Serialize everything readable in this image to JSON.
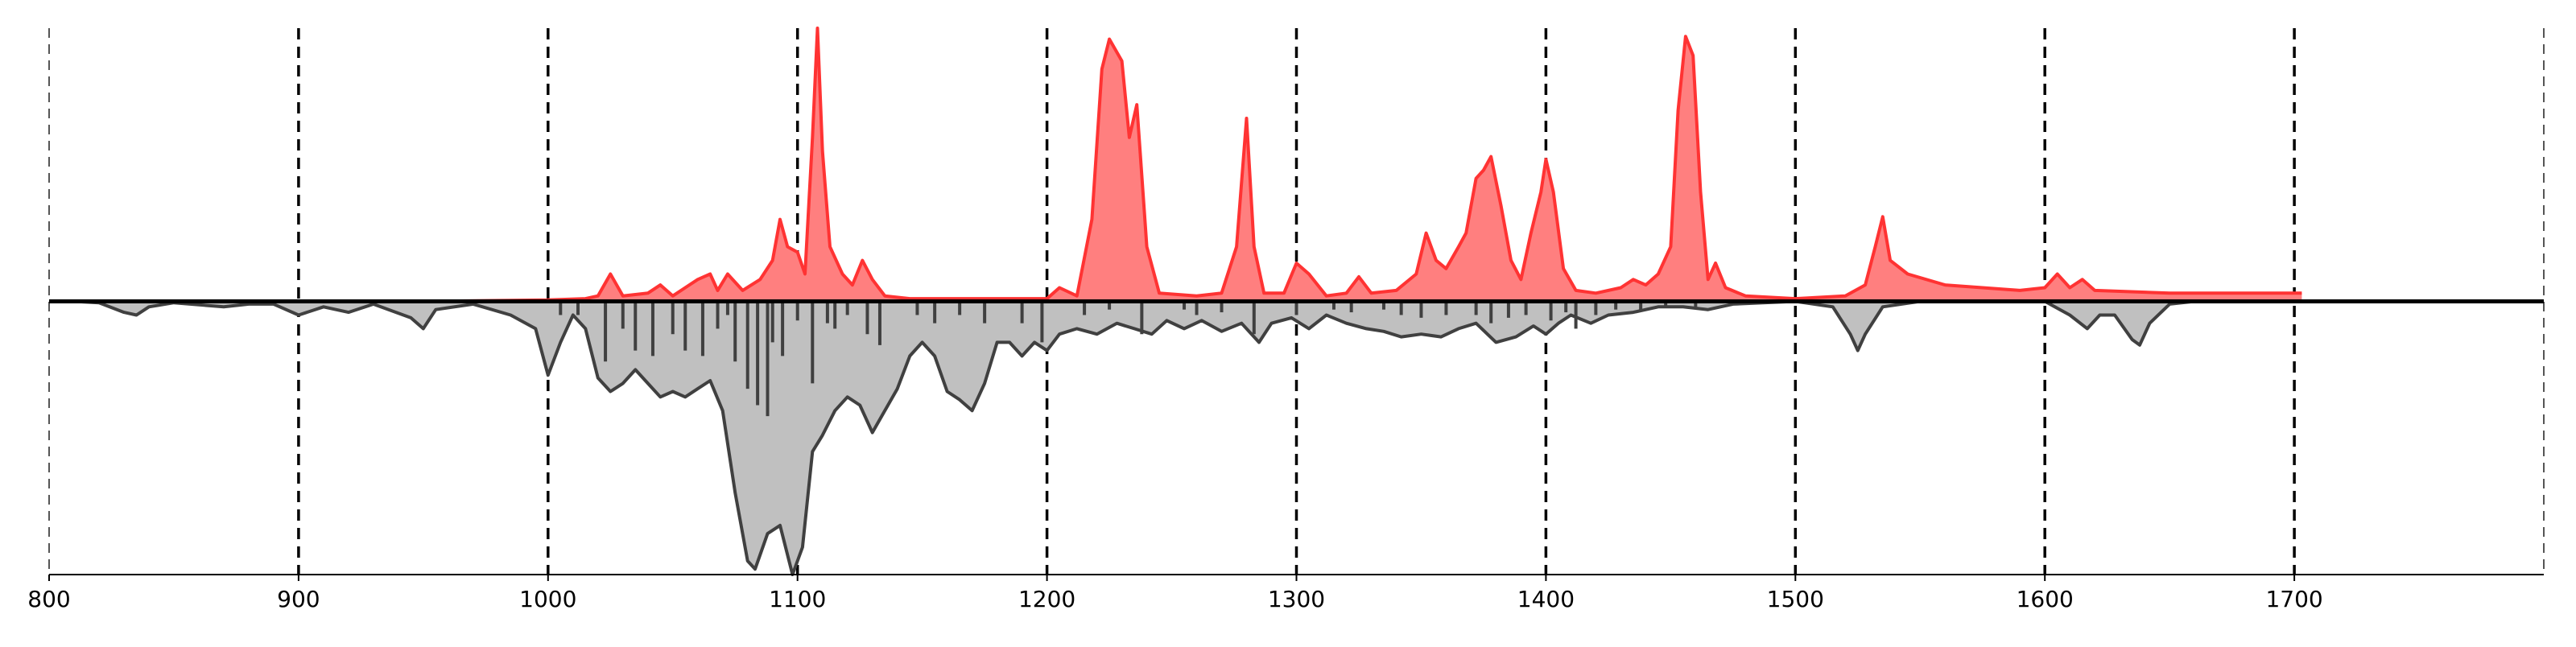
{
  "chart_data": {
    "type": "spectrum",
    "xlim": [
      800,
      1800
    ],
    "xticks": [
      800,
      900,
      1000,
      1100,
      1200,
      1300,
      1400,
      1500,
      1600,
      1700
    ],
    "ylim": [
      -1,
      1
    ],
    "grid": true,
    "series": [
      {
        "color": "#ff3333",
        "x": [
          950,
          1000,
          1015,
          1020,
          1025,
          1030,
          1040,
          1045,
          1050,
          1055,
          1060,
          1065,
          1068,
          1072,
          1078,
          1085,
          1090,
          1093,
          1096,
          1100,
          1103,
          1106,
          1108,
          1110,
          1113,
          1118,
          1122,
          1126,
          1130,
          1135,
          1145,
          1200,
          1205,
          1212,
          1218,
          1222,
          1225,
          1230,
          1233,
          1236,
          1240,
          1245,
          1260,
          1270,
          1276,
          1280,
          1283,
          1287,
          1295,
          1300,
          1305,
          1312,
          1320,
          1325,
          1330,
          1340,
          1348,
          1352,
          1356,
          1360,
          1365,
          1368,
          1372,
          1375,
          1378,
          1382,
          1386,
          1390,
          1394,
          1398,
          1400,
          1403,
          1407,
          1412,
          1420,
          1430,
          1435,
          1440,
          1445,
          1450,
          1453,
          1456,
          1459,
          1462,
          1465,
          1468,
          1472,
          1480,
          1500,
          1520,
          1528,
          1532,
          1535,
          1538,
          1545,
          1560,
          1575,
          1590,
          1600,
          1605,
          1610,
          1615,
          1620,
          1650,
          1680,
          1703
        ],
        "values": [
          0,
          0.005,
          0.01,
          0.02,
          0.1,
          0.02,
          0.03,
          0.06,
          0.02,
          0.05,
          0.08,
          0.1,
          0.04,
          0.1,
          0.04,
          0.08,
          0.15,
          0.3,
          0.2,
          0.18,
          0.1,
          0.6,
          1.0,
          0.55,
          0.2,
          0.1,
          0.06,
          0.15,
          0.08,
          0.02,
          0.01,
          0.01,
          0.05,
          0.02,
          0.3,
          0.85,
          0.96,
          0.88,
          0.6,
          0.72,
          0.2,
          0.03,
          0.02,
          0.03,
          0.2,
          0.67,
          0.2,
          0.03,
          0.03,
          0.14,
          0.1,
          0.02,
          0.03,
          0.09,
          0.03,
          0.04,
          0.1,
          0.25,
          0.15,
          0.12,
          0.2,
          0.25,
          0.45,
          0.48,
          0.53,
          0.35,
          0.15,
          0.08,
          0.25,
          0.4,
          0.52,
          0.4,
          0.12,
          0.04,
          0.03,
          0.05,
          0.08,
          0.06,
          0.1,
          0.2,
          0.7,
          0.97,
          0.9,
          0.4,
          0.08,
          0.14,
          0.05,
          0.02,
          0.01,
          0.02,
          0.06,
          0.2,
          0.31,
          0.15,
          0.1,
          0.06,
          0.05,
          0.04,
          0.05,
          0.1,
          0.05,
          0.08,
          0.04,
          0.03,
          0.03,
          0.03
        ]
      },
      {
        "color": "#404040",
        "x": [
          810,
          820,
          830,
          835,
          840,
          850,
          870,
          880,
          890,
          900,
          910,
          920,
          930,
          945,
          950,
          955,
          970,
          985,
          995,
          1000,
          1005,
          1010,
          1015,
          1020,
          1025,
          1030,
          1035,
          1040,
          1045,
          1050,
          1055,
          1060,
          1065,
          1070,
          1075,
          1080,
          1083,
          1088,
          1093,
          1098,
          1102,
          1106,
          1110,
          1115,
          1120,
          1125,
          1130,
          1135,
          1140,
          1145,
          1150,
          1155,
          1160,
          1165,
          1170,
          1175,
          1180,
          1185,
          1190,
          1195,
          1200,
          1205,
          1212,
          1220,
          1228,
          1235,
          1242,
          1248,
          1255,
          1262,
          1270,
          1278,
          1285,
          1290,
          1298,
          1305,
          1312,
          1320,
          1328,
          1335,
          1342,
          1350,
          1358,
          1365,
          1372,
          1380,
          1388,
          1395,
          1400,
          1405,
          1410,
          1418,
          1425,
          1435,
          1445,
          1455,
          1465,
          1475,
          1500,
          1515,
          1522,
          1525,
          1528,
          1535,
          1550,
          1600,
          1610,
          1617,
          1622,
          1628,
          1635,
          1638,
          1642,
          1650,
          1660
        ],
        "values": [
          0,
          -0.005,
          -0.04,
          -0.05,
          -0.02,
          -0.005,
          -0.02,
          -0.01,
          -0.01,
          -0.05,
          -0.02,
          -0.04,
          -0.01,
          -0.06,
          -0.1,
          -0.03,
          -0.01,
          -0.05,
          -0.1,
          -0.27,
          -0.15,
          -0.05,
          -0.1,
          -0.28,
          -0.33,
          -0.3,
          -0.25,
          -0.3,
          -0.35,
          -0.33,
          -0.35,
          -0.32,
          -0.29,
          -0.4,
          -0.7,
          -0.95,
          -0.98,
          -0.85,
          -0.82,
          -1.0,
          -0.9,
          -0.55,
          -0.49,
          -0.4,
          -0.35,
          -0.38,
          -0.48,
          -0.4,
          -0.32,
          -0.2,
          -0.15,
          -0.2,
          -0.33,
          -0.36,
          -0.4,
          -0.3,
          -0.15,
          -0.15,
          -0.2,
          -0.15,
          -0.18,
          -0.12,
          -0.1,
          -0.12,
          -0.08,
          -0.1,
          -0.12,
          -0.07,
          -0.1,
          -0.07,
          -0.11,
          -0.08,
          -0.15,
          -0.08,
          -0.06,
          -0.1,
          -0.05,
          -0.08,
          -0.1,
          -0.11,
          -0.13,
          -0.12,
          -0.13,
          -0.1,
          -0.08,
          -0.15,
          -0.13,
          -0.09,
          -0.12,
          -0.08,
          -0.05,
          -0.08,
          -0.05,
          -0.04,
          -0.02,
          -0.02,
          -0.03,
          -0.01,
          0,
          -0.02,
          -0.12,
          -0.18,
          -0.12,
          -0.02,
          0,
          0,
          -0.05,
          -0.1,
          -0.05,
          -0.05,
          -0.14,
          -0.16,
          -0.08,
          -0.01,
          0
        ]
      }
    ],
    "sticks": {
      "color": "#404040",
      "x": [
        1005,
        1012,
        1023,
        1030,
        1035,
        1042,
        1050,
        1055,
        1062,
        1068,
        1072,
        1075,
        1080,
        1084,
        1088,
        1090,
        1094,
        1100,
        1106,
        1112,
        1115,
        1120,
        1128,
        1133,
        1148,
        1155,
        1165,
        1175,
        1190,
        1198,
        1215,
        1225,
        1238,
        1255,
        1260,
        1270,
        1283,
        1300,
        1315,
        1322,
        1335,
        1342,
        1350,
        1360,
        1372,
        1378,
        1385,
        1392,
        1402,
        1408,
        1412,
        1420,
        1428,
        1438,
        1448,
        1460
      ],
      "values": [
        -0.05,
        -0.05,
        -0.22,
        -0.1,
        -0.18,
        -0.2,
        -0.12,
        -0.18,
        -0.2,
        -0.1,
        -0.05,
        -0.22,
        -0.32,
        -0.38,
        -0.42,
        -0.15,
        -0.2,
        -0.07,
        -0.3,
        -0.08,
        -0.1,
        -0.05,
        -0.12,
        -0.16,
        -0.05,
        -0.08,
        -0.05,
        -0.08,
        -0.08,
        -0.15,
        -0.05,
        -0.03,
        -0.12,
        -0.03,
        -0.05,
        -0.04,
        -0.12,
        -0.05,
        -0.03,
        -0.04,
        -0.03,
        -0.05,
        -0.06,
        -0.05,
        -0.05,
        -0.08,
        -0.06,
        -0.05,
        -0.07,
        -0.04,
        -0.1,
        -0.05,
        -0.03,
        -0.03,
        -0.02,
        -0.02
      ]
    }
  }
}
